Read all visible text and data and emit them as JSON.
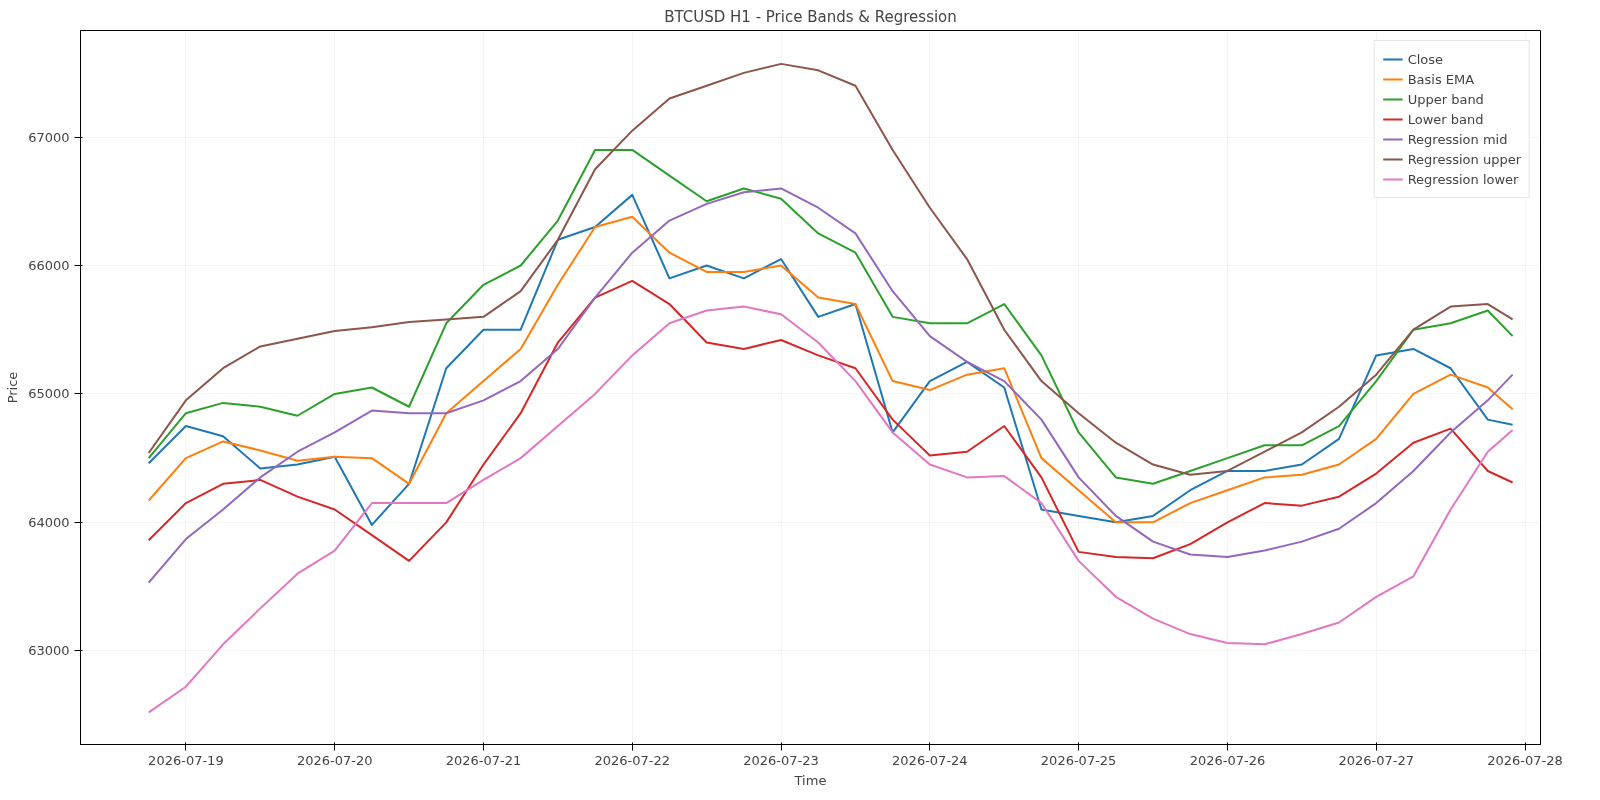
{
  "chart_data": {
    "type": "line",
    "title": "BTCUSD H1 - Price Bands & Regression",
    "xlabel": "Time",
    "ylabel": "Price",
    "x": [
      "2026-07-18T18:00",
      "2026-07-19T00:00",
      "2026-07-19T06:00",
      "2026-07-19T12:00",
      "2026-07-19T18:00",
      "2026-07-20T00:00",
      "2026-07-20T06:00",
      "2026-07-20T12:00",
      "2026-07-20T18:00",
      "2026-07-21T00:00",
      "2026-07-21T06:00",
      "2026-07-21T12:00",
      "2026-07-21T18:00",
      "2026-07-22T00:00",
      "2026-07-22T06:00",
      "2026-07-22T12:00",
      "2026-07-22T18:00",
      "2026-07-23T00:00",
      "2026-07-23T06:00",
      "2026-07-23T12:00",
      "2026-07-23T18:00",
      "2026-07-24T00:00",
      "2026-07-24T06:00",
      "2026-07-24T12:00",
      "2026-07-24T18:00",
      "2026-07-25T00:00",
      "2026-07-25T06:00",
      "2026-07-25T12:00",
      "2026-07-25T18:00",
      "2026-07-26T00:00",
      "2026-07-26T06:00",
      "2026-07-26T12:00",
      "2026-07-26T18:00",
      "2026-07-27T00:00",
      "2026-07-27T06:00",
      "2026-07-27T12:00",
      "2026-07-27T18:00",
      "2026-07-27T22:00"
    ],
    "series": [
      {
        "name": "Close",
        "color": "#1f77b4",
        "values": [
          64460,
          64750,
          64670,
          64420,
          64450,
          64510,
          63980,
          64300,
          65200,
          65500,
          65500,
          66200,
          66300,
          66550,
          65900,
          66000,
          65900,
          66050,
          65600,
          65700,
          64700,
          65100,
          65250,
          65050,
          64100,
          64050,
          64000,
          64050,
          64250,
          64400,
          64400,
          64450,
          64650,
          65300,
          65350,
          65200,
          64800,
          64760
        ]
      },
      {
        "name": "Basis EMA",
        "color": "#ff7f0e",
        "values": [
          64170,
          64500,
          64630,
          64560,
          64480,
          64510,
          64500,
          64300,
          64850,
          65100,
          65350,
          65850,
          66300,
          66380,
          66100,
          65950,
          65950,
          66000,
          65750,
          65700,
          65100,
          65030,
          65150,
          65200,
          64500,
          64250,
          64000,
          64000,
          64150,
          64250,
          64350,
          64370,
          64450,
          64650,
          65000,
          65150,
          65050,
          64880
        ]
      },
      {
        "name": "Upper band",
        "color": "#2ca02c",
        "values": [
          64500,
          64850,
          64930,
          64900,
          64830,
          65000,
          65050,
          64900,
          65550,
          65850,
          66000,
          66350,
          66900,
          66900,
          66700,
          66500,
          66600,
          66520,
          66250,
          66100,
          65600,
          65550,
          65550,
          65700,
          65300,
          64700,
          64350,
          64300,
          64400,
          64500,
          64600,
          64600,
          64750,
          65100,
          65500,
          65550,
          65650,
          65450
        ]
      },
      {
        "name": "Lower band",
        "color": "#d62728",
        "values": [
          63860,
          64150,
          64300,
          64330,
          64200,
          64100,
          63900,
          63700,
          64000,
          64450,
          64850,
          65400,
          65750,
          65880,
          65700,
          65400,
          65350,
          65420,
          65300,
          65200,
          64800,
          64520,
          64550,
          64750,
          64350,
          63770,
          63730,
          63720,
          63830,
          64000,
          64150,
          64130,
          64200,
          64380,
          64620,
          64730,
          64400,
          64310
        ]
      },
      {
        "name": "Regression mid",
        "color": "#9467bd",
        "values": [
          63530,
          63870,
          64100,
          64350,
          64550,
          64700,
          64870,
          64850,
          64850,
          64950,
          65100,
          65350,
          65750,
          66100,
          66350,
          66480,
          66570,
          66600,
          66450,
          66250,
          65800,
          65450,
          65250,
          65100,
          64800,
          64350,
          64050,
          63850,
          63750,
          63730,
          63780,
          63850,
          63950,
          64150,
          64400,
          64700,
          64950,
          65150
        ]
      },
      {
        "name": "Regression upper",
        "color": "#8c564b",
        "values": [
          64540,
          64950,
          65200,
          65370,
          65430,
          65490,
          65520,
          65560,
          65580,
          65600,
          65800,
          66200,
          66750,
          67050,
          67300,
          67400,
          67500,
          67570,
          67520,
          67400,
          66900,
          66450,
          66050,
          65500,
          65100,
          64850,
          64620,
          64450,
          64370,
          64400,
          64550,
          64700,
          64900,
          65150,
          65500,
          65680,
          65700,
          65580
        ]
      },
      {
        "name": "Regression lower",
        "color": "#e377c2",
        "values": [
          62520,
          62720,
          63050,
          63330,
          63600,
          63780,
          64150,
          64150,
          64150,
          64330,
          64500,
          64750,
          65000,
          65300,
          65550,
          65650,
          65680,
          65620,
          65400,
          65100,
          64700,
          64450,
          64350,
          64360,
          64150,
          63700,
          63420,
          63250,
          63130,
          63060,
          63050,
          63130,
          63220,
          63420,
          63580,
          64100,
          64550,
          64720
        ]
      }
    ],
    "xlim": [
      "2026-07-18T07:00",
      "2026-07-28T02:30"
    ],
    "xticks": [
      "2026-07-19",
      "2026-07-20",
      "2026-07-21",
      "2026-07-22",
      "2026-07-23",
      "2026-07-24",
      "2026-07-25",
      "2026-07-26",
      "2026-07-27",
      "2026-07-28"
    ],
    "ylim": [
      62270,
      67830
    ],
    "yticks": [
      63000,
      64000,
      65000,
      66000,
      67000
    ],
    "grid": true,
    "legend": "top right",
    "line_style": "solid"
  }
}
